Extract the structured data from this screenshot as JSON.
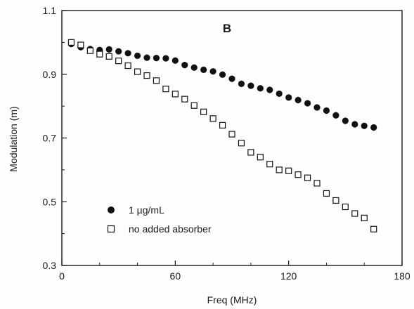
{
  "chart_data": {
    "type": "scatter",
    "panel_label": "B",
    "xlabel": "Freq (MHz)",
    "ylabel": "Modulation (m)",
    "xlim": [
      0,
      180
    ],
    "ylim": [
      0.3,
      1.1
    ],
    "xticks": [
      {
        "value": 0,
        "label": "0"
      },
      {
        "value": 60,
        "label": "60"
      },
      {
        "value": 120,
        "label": "120"
      },
      {
        "value": 180,
        "label": "180"
      }
    ],
    "yticks": [
      {
        "value": 0.3,
        "label": "0.3"
      },
      {
        "value": 0.5,
        "label": "0.5"
      },
      {
        "value": 0.7,
        "label": "0.7"
      },
      {
        "value": 0.9,
        "label": "0.9"
      },
      {
        "value": 1.1,
        "label": "1.1"
      }
    ],
    "grid": false,
    "legend_position": "bottom-left",
    "series": [
      {
        "name": "1 µg/mL",
        "marker": "filled-circle",
        "color": "#111111",
        "x": [
          5,
          10,
          15,
          20,
          25,
          30,
          35,
          40,
          45,
          50,
          55,
          60,
          65,
          70,
          75,
          80,
          85,
          90,
          95,
          100,
          105,
          110,
          115,
          120,
          125,
          130,
          135,
          140,
          145,
          150,
          155,
          160,
          165
        ],
        "y": [
          0.995,
          0.985,
          0.979,
          0.976,
          0.978,
          0.972,
          0.966,
          0.958,
          0.952,
          0.951,
          0.95,
          0.943,
          0.929,
          0.921,
          0.914,
          0.909,
          0.899,
          0.886,
          0.87,
          0.864,
          0.856,
          0.851,
          0.839,
          0.827,
          0.819,
          0.809,
          0.796,
          0.786,
          0.771,
          0.754,
          0.743,
          0.738,
          0.733
        ]
      },
      {
        "name": "no added absorber",
        "marker": "open-square",
        "color": "#111111",
        "x": [
          5,
          10,
          15,
          20,
          25,
          30,
          35,
          40,
          45,
          50,
          55,
          60,
          65,
          70,
          75,
          80,
          85,
          90,
          95,
          100,
          105,
          110,
          115,
          120,
          125,
          130,
          135,
          140,
          145,
          150,
          155,
          160,
          165
        ],
        "y": [
          1.0,
          0.992,
          0.974,
          0.963,
          0.956,
          0.942,
          0.927,
          0.908,
          0.896,
          0.88,
          0.854,
          0.838,
          0.822,
          0.802,
          0.782,
          0.761,
          0.74,
          0.712,
          0.684,
          0.655,
          0.64,
          0.618,
          0.6,
          0.597,
          0.585,
          0.575,
          0.558,
          0.526,
          0.504,
          0.484,
          0.463,
          0.449,
          0.414
        ]
      }
    ],
    "legend": [
      {
        "label": "1 µg/mL",
        "marker": "filled-circle"
      },
      {
        "label": "no added absorber",
        "marker": "open-square"
      }
    ]
  }
}
